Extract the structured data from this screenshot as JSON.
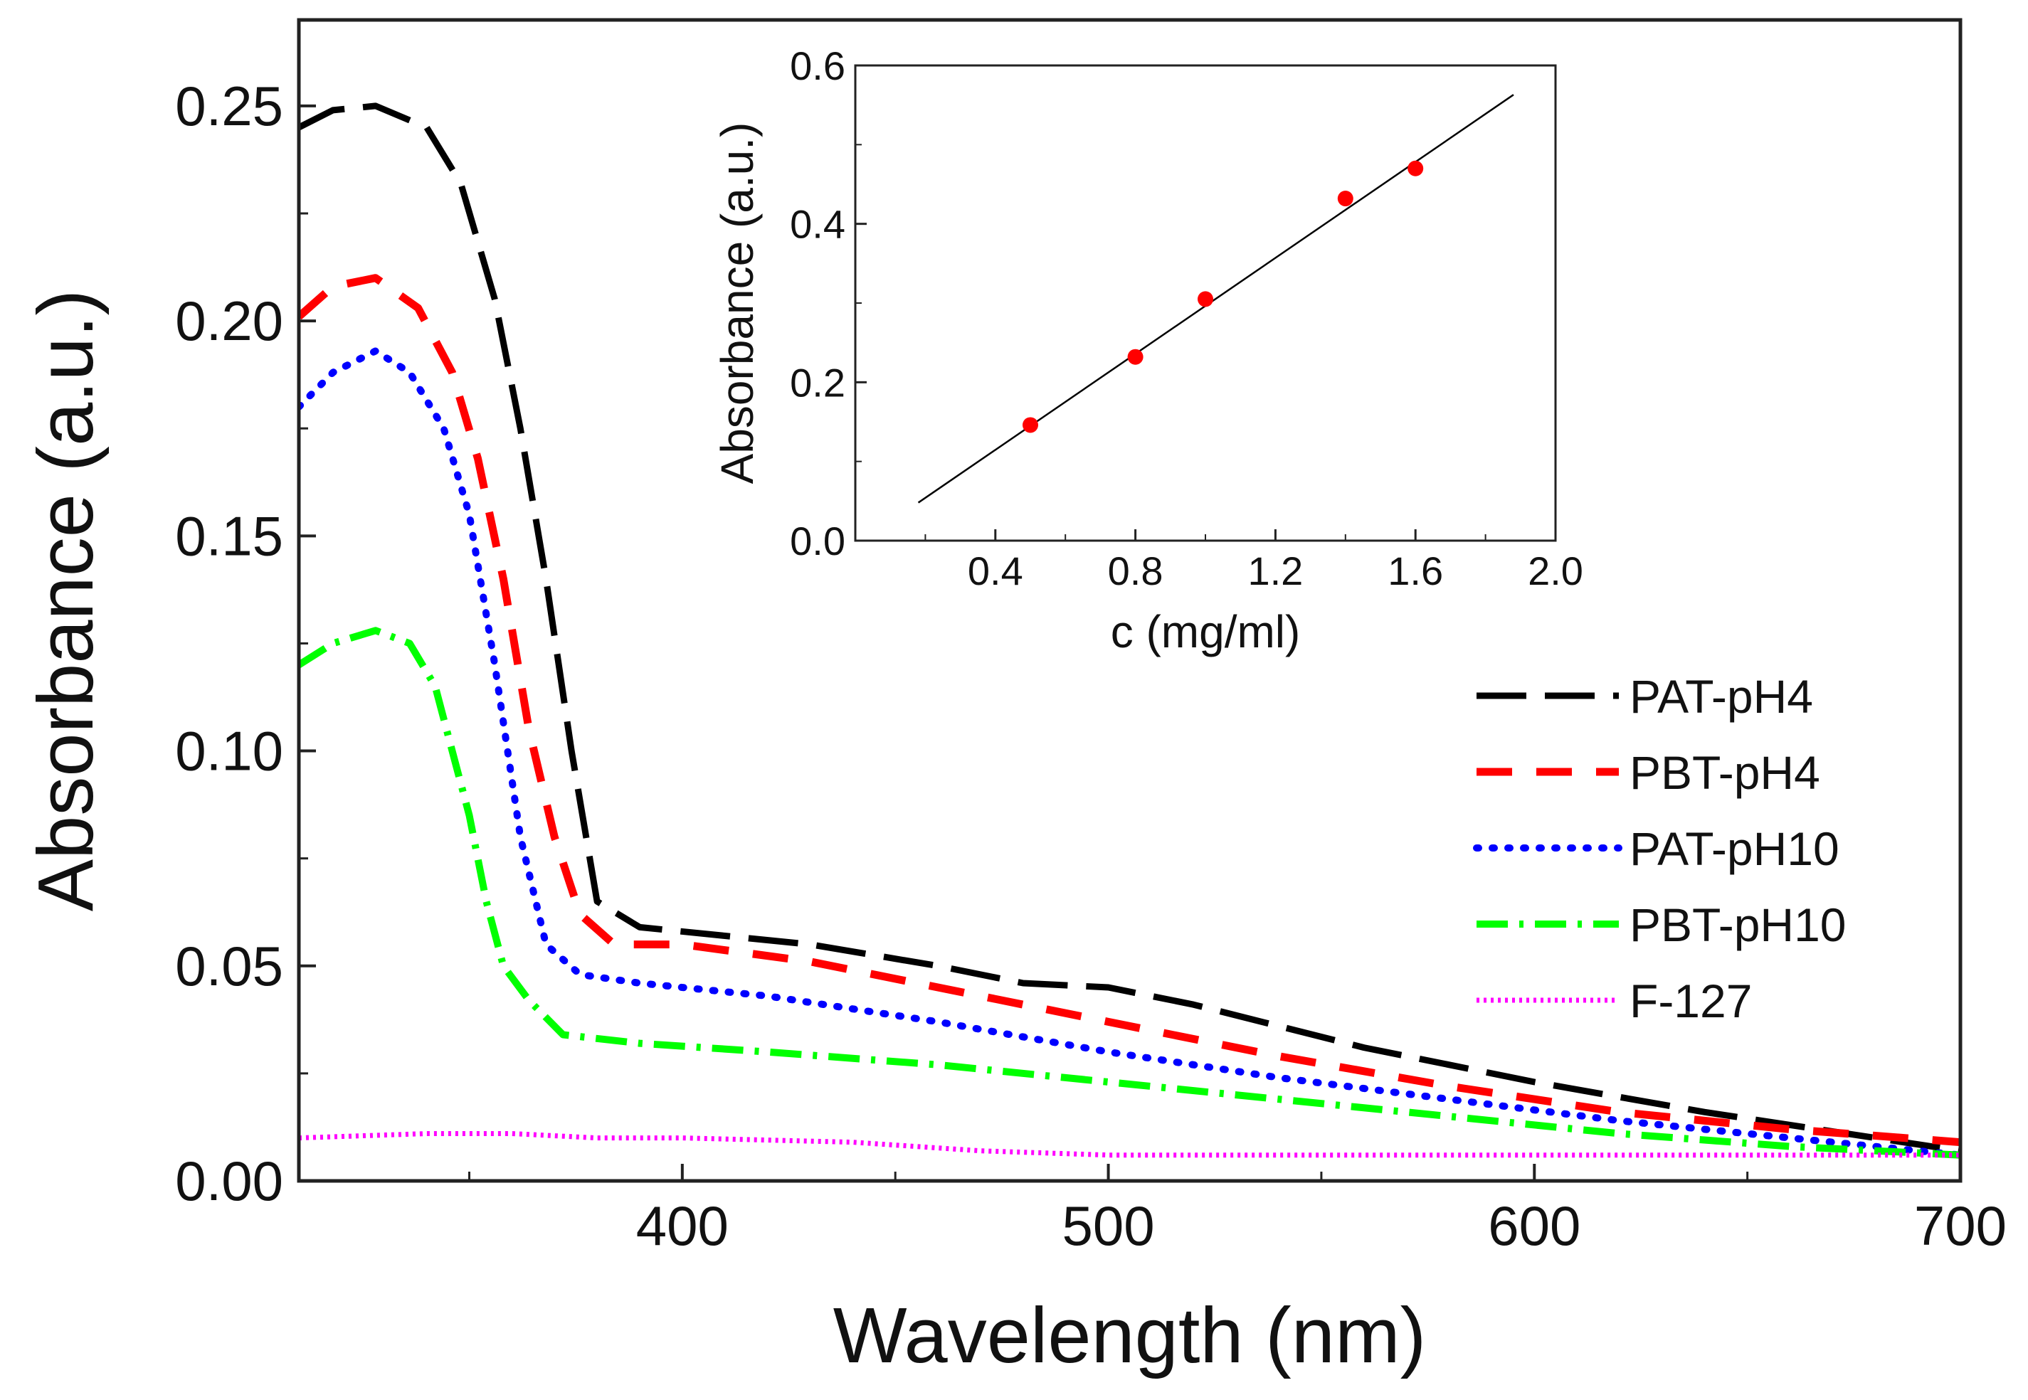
{
  "chart_data": [
    {
      "type": "line",
      "title": "",
      "xlabel": "Wavelength (nm)",
      "ylabel": "Absorbance (a.u.)",
      "xlim": [
        310,
        700
      ],
      "ylim": [
        0.0,
        0.27
      ],
      "xticks": [
        400,
        500,
        600,
        700
      ],
      "xtick_labels": [
        "400",
        "500",
        "600",
        "700"
      ],
      "yticks": [
        0.0,
        0.05,
        0.1,
        0.15,
        0.2,
        0.25
      ],
      "ytick_labels": [
        "0.00",
        "0.05",
        "0.10",
        "0.15",
        "0.20",
        "0.25"
      ],
      "grid": false,
      "legend_position": "right",
      "series": [
        {
          "name": "PAT-pH4",
          "color": "#000000",
          "style": "dash-long",
          "x": [
            310,
            318,
            328,
            340,
            348,
            356,
            362,
            368,
            374,
            380,
            390,
            410,
            430,
            460,
            480,
            500,
            520,
            560,
            600,
            640,
            680,
            700
          ],
          "y": [
            0.245,
            0.249,
            0.25,
            0.245,
            0.232,
            0.205,
            0.175,
            0.14,
            0.1,
            0.065,
            0.059,
            0.057,
            0.055,
            0.05,
            0.046,
            0.045,
            0.041,
            0.031,
            0.023,
            0.016,
            0.01,
            0.007
          ]
        },
        {
          "name": "PBT-pH4",
          "color": "#ff0000",
          "style": "dash",
          "x": [
            310,
            318,
            328,
            338,
            346,
            352,
            358,
            364,
            370,
            376,
            384,
            400,
            430,
            460,
            500,
            540,
            580,
            620,
            660,
            700
          ],
          "y": [
            0.201,
            0.208,
            0.21,
            0.203,
            0.188,
            0.168,
            0.14,
            0.105,
            0.08,
            0.062,
            0.055,
            0.055,
            0.051,
            0.045,
            0.037,
            0.029,
            0.022,
            0.016,
            0.012,
            0.009
          ]
        },
        {
          "name": "PAT-pH10",
          "color": "#0000ff",
          "style": "dot",
          "x": [
            310,
            318,
            328,
            336,
            344,
            350,
            356,
            362,
            368,
            376,
            390,
            420,
            460,
            500,
            540,
            580,
            620,
            660,
            700
          ],
          "y": [
            0.18,
            0.188,
            0.193,
            0.188,
            0.175,
            0.155,
            0.12,
            0.08,
            0.055,
            0.048,
            0.046,
            0.043,
            0.037,
            0.03,
            0.024,
            0.019,
            0.014,
            0.01,
            0.006
          ]
        },
        {
          "name": "PBT-pH10",
          "color": "#00ff00",
          "style": "dash-dot",
          "x": [
            310,
            318,
            328,
            336,
            342,
            346,
            350,
            354,
            358,
            364,
            372,
            390,
            420,
            460,
            500,
            540,
            580,
            620,
            660,
            700
          ],
          "y": [
            0.12,
            0.125,
            0.128,
            0.125,
            0.115,
            0.1,
            0.085,
            0.065,
            0.05,
            0.042,
            0.034,
            0.032,
            0.03,
            0.027,
            0.023,
            0.019,
            0.015,
            0.011,
            0.008,
            0.006
          ]
        },
        {
          "name": "F-127",
          "color": "#ff00ff",
          "style": "fine-dot",
          "x": [
            310,
            340,
            360,
            380,
            400,
            440,
            470,
            500,
            550,
            600,
            650,
            700
          ],
          "y": [
            0.01,
            0.011,
            0.011,
            0.01,
            0.01,
            0.009,
            0.007,
            0.006,
            0.006,
            0.006,
            0.006,
            0.006
          ]
        }
      ]
    },
    {
      "type": "scatter",
      "title": "",
      "xlabel": "c (mg/ml)",
      "ylabel": "Absorbance (a.u.)",
      "xlim": [
        0.0,
        2.0
      ],
      "ylim": [
        0.0,
        0.6
      ],
      "xticks": [
        0.4,
        0.8,
        1.2,
        1.6,
        2.0
      ],
      "xtick_labels": [
        "0.4",
        "0.8",
        "1.2",
        "1.6",
        "2.0"
      ],
      "yticks": [
        0.0,
        0.2,
        0.4,
        0.6
      ],
      "ytick_labels": [
        "0.0",
        "0.2",
        "0.4",
        "0.6"
      ],
      "grid": false,
      "points": {
        "color": "#ff0000",
        "x": [
          0.5,
          0.8,
          1.0,
          1.4,
          1.6
        ],
        "y": [
          0.146,
          0.232,
          0.305,
          0.432,
          0.47
        ]
      },
      "fit_line": {
        "color": "#000000",
        "x": [
          0.18,
          1.88
        ],
        "y": [
          0.048,
          0.563
        ]
      }
    }
  ]
}
